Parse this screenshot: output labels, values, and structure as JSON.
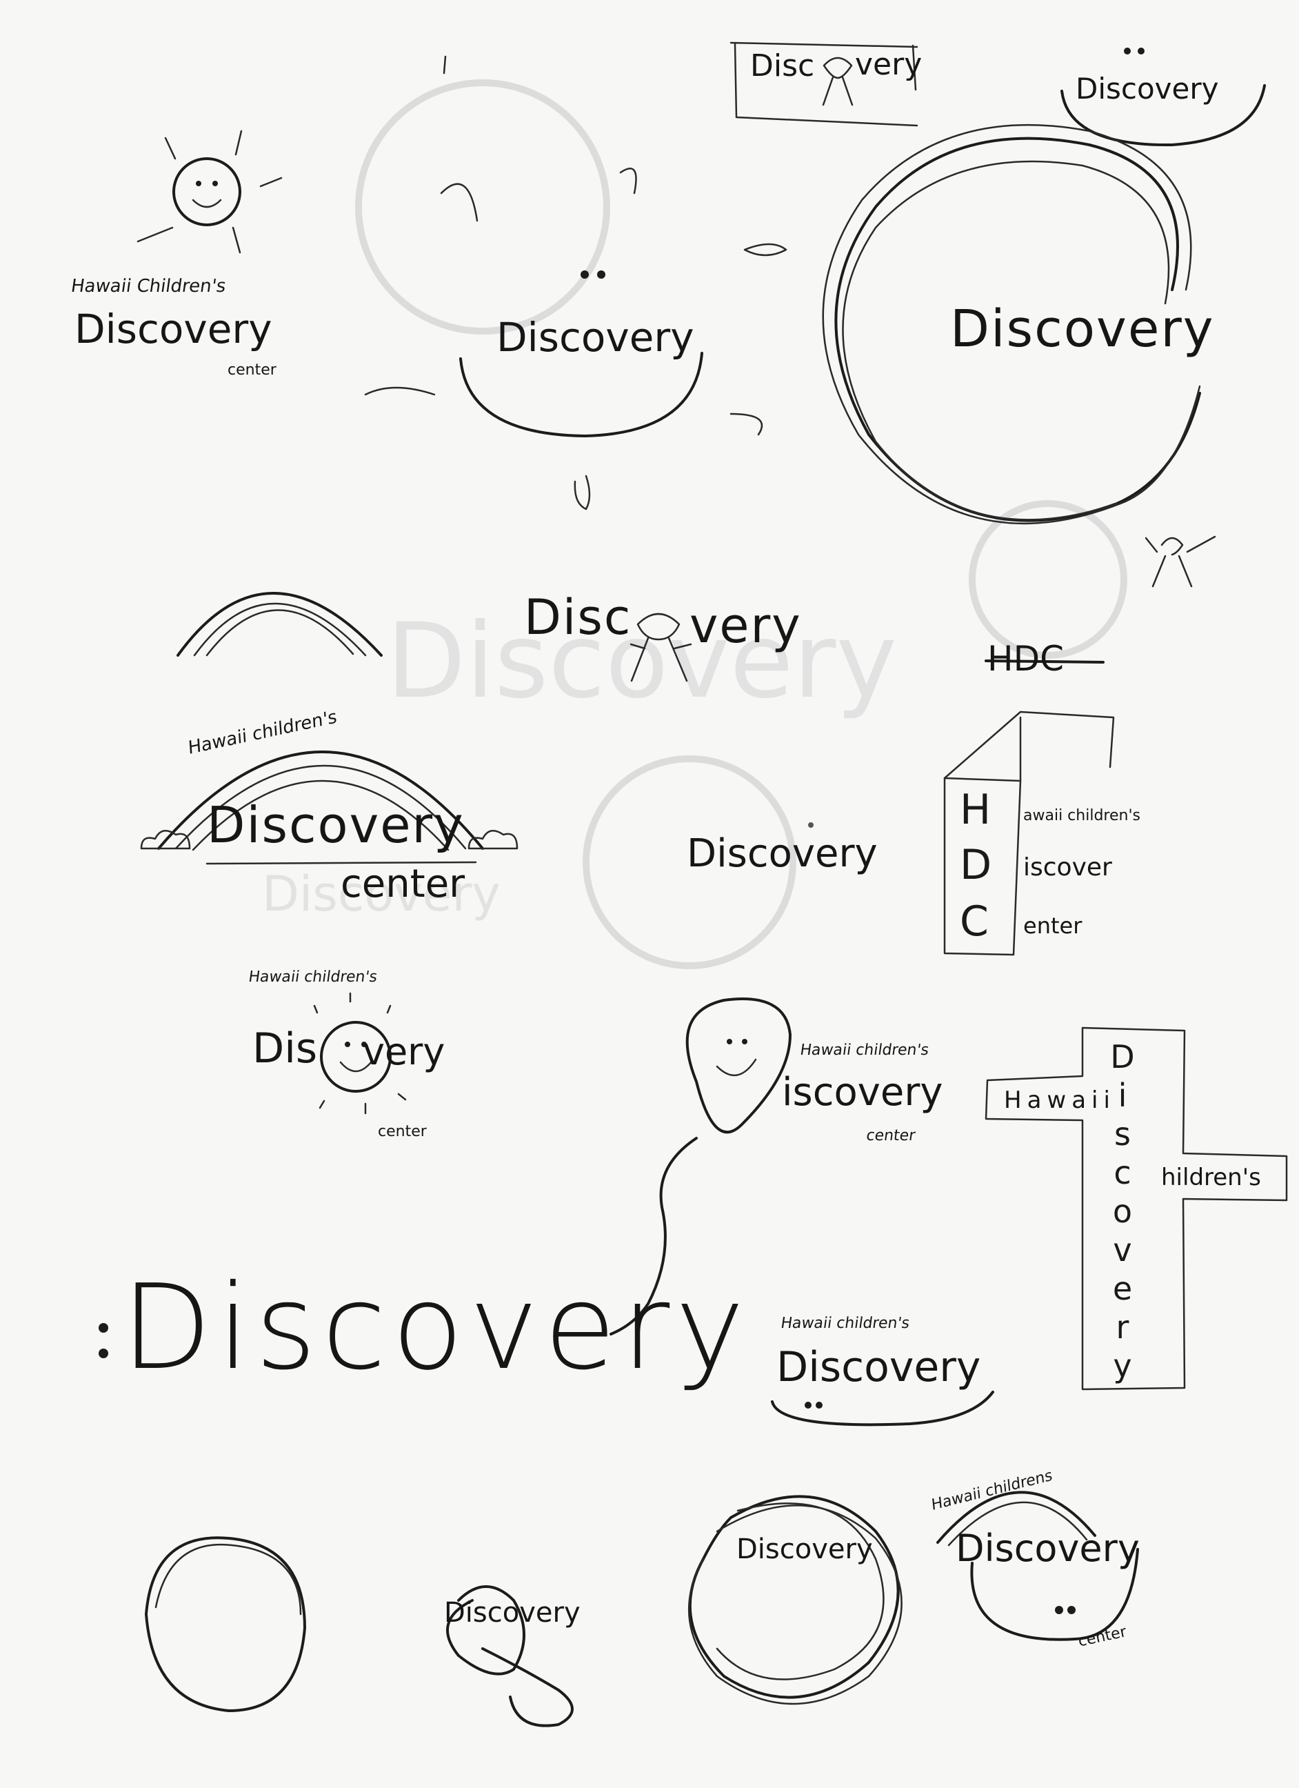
{
  "sheet": {
    "sketches": {
      "sun_small": {
        "line1": "Hawaii Children's",
        "word": "Discovery",
        "line3": "center"
      },
      "box_logo": {
        "word": "Disc",
        "word2": "very"
      },
      "smile_top_right": {
        "word": "Discovery"
      },
      "sun_big": {
        "word": "Discovery"
      },
      "circle_big": {
        "word": "Discovery"
      },
      "figure_word": {
        "word": "Disc",
        "word2": "very"
      },
      "struck": {
        "text": "HDC"
      },
      "rainbow": {
        "line1": "Hawaii children's",
        "word": "Discovery",
        "line3": "center"
      },
      "plain_mid": {
        "word": "Discovery"
      },
      "hdc_box": {
        "letters": [
          "H",
          "D",
          "C"
        ],
        "rest": [
          "awaii children's",
          "iscover",
          "enter"
        ]
      },
      "sun_face": {
        "line1": "Hawaii children's",
        "word_a": "Dis",
        "word_b": "very",
        "line3": "center"
      },
      "balloon": {
        "line1": "Hawaii children's",
        "word": "iscovery",
        "line3": "center"
      },
      "cross": {
        "left": "Hawaii",
        "right": "hildren's",
        "vertical": [
          "D",
          "i",
          "s",
          "c",
          "o",
          "v",
          "e",
          "r",
          "y"
        ]
      },
      "huge_word": {
        "word": "Discovery"
      },
      "smile_bottom": {
        "line1": "Hawaii children's",
        "word": "Discovery"
      },
      "circle_swirl_a": {
        "word": "Discovery"
      },
      "circle_swirl_b": {
        "word": "Discovery"
      },
      "arc_face": {
        "line1": "Hawaii childrens",
        "word": "Discovery",
        "line3": "center"
      }
    },
    "colors": {
      "ink": "#1c1c1c",
      "paper": "#f7f7f5",
      "ghost": "#dcdcdc"
    }
  }
}
